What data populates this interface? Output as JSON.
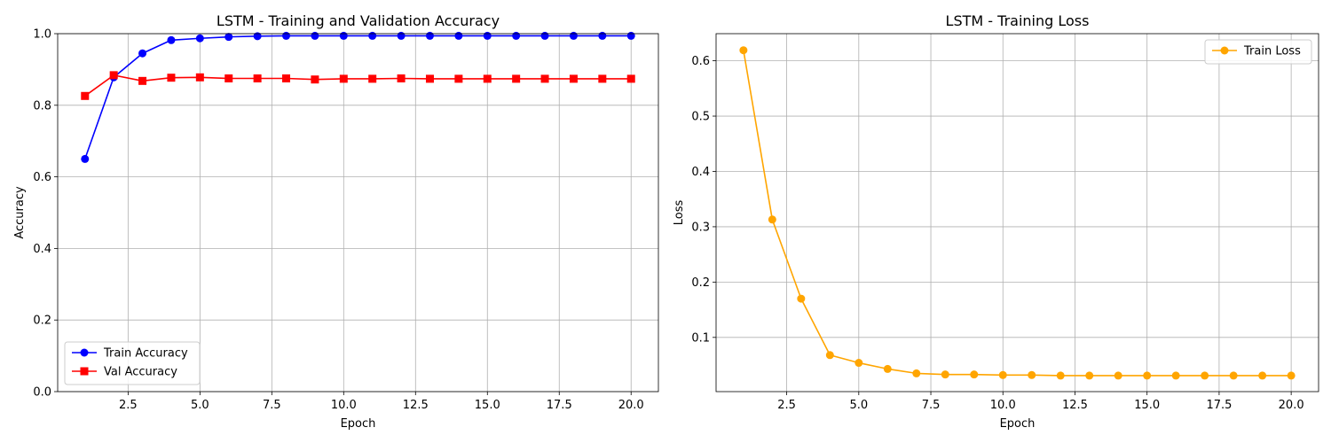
{
  "chart_data": [
    {
      "type": "line",
      "title": "LSTM - Training and Validation Accuracy",
      "xlabel": "Epoch",
      "ylabel": "Accuracy",
      "xlim": [
        0.05,
        20.95
      ],
      "ylim": [
        0.0,
        1.0
      ],
      "xticks": [
        2.5,
        5.0,
        7.5,
        10.0,
        12.5,
        15.0,
        17.5,
        20.0
      ],
      "xtick_labels": [
        "2.5",
        "5.0",
        "7.5",
        "10.0",
        "12.5",
        "15.0",
        "17.5",
        "20.0"
      ],
      "yticks": [
        0.0,
        0.2,
        0.4,
        0.6,
        0.8,
        1.0
      ],
      "ytick_labels": [
        "0.0",
        "0.2",
        "0.4",
        "0.6",
        "0.8",
        "1.0"
      ],
      "grid": true,
      "legend_position": "lower-left",
      "x": [
        1,
        2,
        3,
        4,
        5,
        6,
        7,
        8,
        9,
        10,
        11,
        12,
        13,
        14,
        15,
        16,
        17,
        18,
        19,
        20
      ],
      "series": [
        {
          "name": "Train Accuracy",
          "color": "#0000ff",
          "marker": "circle",
          "values": [
            0.65,
            0.878,
            0.945,
            0.982,
            0.987,
            0.991,
            0.993,
            0.994,
            0.994,
            0.994,
            0.994,
            0.994,
            0.994,
            0.994,
            0.994,
            0.994,
            0.994,
            0.994,
            0.994,
            0.994
          ]
        },
        {
          "name": "Val Accuracy",
          "color": "#ff0000",
          "marker": "square",
          "values": [
            0.826,
            0.884,
            0.868,
            0.877,
            0.878,
            0.875,
            0.875,
            0.875,
            0.872,
            0.874,
            0.874,
            0.875,
            0.874,
            0.874,
            0.874,
            0.874,
            0.874,
            0.874,
            0.874,
            0.874
          ]
        }
      ]
    },
    {
      "type": "line",
      "title": "LSTM - Training Loss",
      "xlabel": "Epoch",
      "ylabel": "Loss",
      "xlim": [
        0.05,
        20.95
      ],
      "ylim": [
        0.002,
        0.649
      ],
      "xticks": [
        2.5,
        5.0,
        7.5,
        10.0,
        12.5,
        15.0,
        17.5,
        20.0
      ],
      "xtick_labels": [
        "2.5",
        "5.0",
        "7.5",
        "10.0",
        "12.5",
        "15.0",
        "17.5",
        "20.0"
      ],
      "yticks": [
        0.1,
        0.2,
        0.3,
        0.4,
        0.5,
        0.6
      ],
      "ytick_labels": [
        "0.1",
        "0.2",
        "0.3",
        "0.4",
        "0.5",
        "0.6"
      ],
      "grid": true,
      "legend_position": "upper-right",
      "x": [
        1,
        2,
        3,
        4,
        5,
        6,
        7,
        8,
        9,
        10,
        11,
        12,
        13,
        14,
        15,
        16,
        17,
        18,
        19,
        20
      ],
      "series": [
        {
          "name": "Train Loss",
          "color": "#ffa500",
          "marker": "circle",
          "values": [
            0.619,
            0.313,
            0.17,
            0.068,
            0.054,
            0.043,
            0.035,
            0.033,
            0.033,
            0.032,
            0.032,
            0.031,
            0.031,
            0.031,
            0.031,
            0.031,
            0.031,
            0.031,
            0.031,
            0.031
          ]
        }
      ]
    }
  ]
}
